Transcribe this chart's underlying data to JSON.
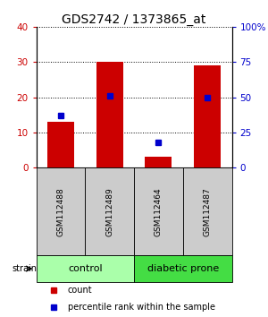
{
  "title": "GDS2742 / 1373865_at",
  "samples": [
    "GSM112488",
    "GSM112489",
    "GSM112464",
    "GSM112487"
  ],
  "counts": [
    13,
    30,
    3,
    29
  ],
  "percentiles": [
    37,
    51,
    18,
    50
  ],
  "ylim_left": [
    0,
    40
  ],
  "ylim_right": [
    0,
    100
  ],
  "yticks_left": [
    0,
    10,
    20,
    30,
    40
  ],
  "yticks_right": [
    0,
    25,
    50,
    75,
    100
  ],
  "ytick_labels_right": [
    "0",
    "25",
    "50",
    "75",
    "100%"
  ],
  "bar_color": "#cc0000",
  "dot_color": "#0000cc",
  "groups": [
    {
      "label": "control",
      "indices": [
        0,
        1
      ],
      "color": "#aaffaa"
    },
    {
      "label": "diabetic prone",
      "indices": [
        2,
        3
      ],
      "color": "#44dd44"
    }
  ],
  "strain_label": "strain",
  "legend_count_label": "count",
  "legend_percentile_label": "percentile rank within the sample",
  "background_sample_row": "#cccccc",
  "title_fontsize": 10,
  "tick_fontsize": 7.5,
  "sample_fontsize": 6.5,
  "group_fontsize": 8,
  "legend_fontsize": 7
}
